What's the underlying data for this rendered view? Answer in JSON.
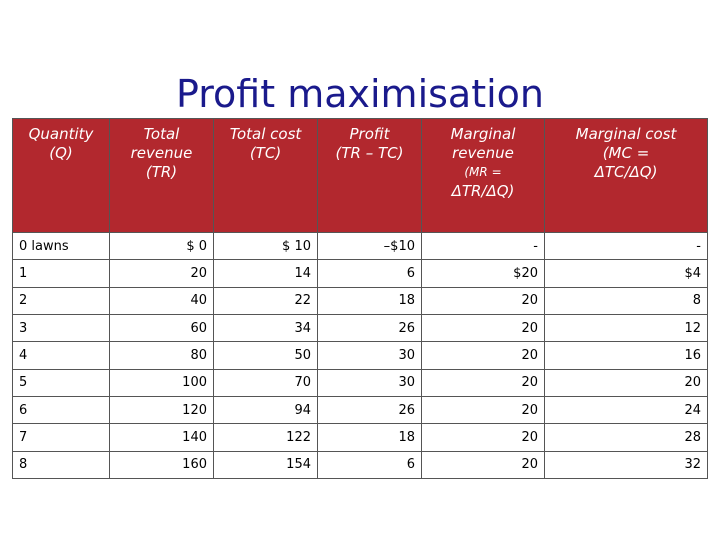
{
  "title": "Profit maximisation",
  "headers": [
    {
      "lines": [
        "Quantity",
        "(Q)"
      ]
    },
    {
      "lines": [
        "Total",
        "revenue",
        "(TR)"
      ]
    },
    {
      "lines": [
        "Total cost",
        "(TC)"
      ]
    },
    {
      "lines": [
        "Profit",
        "(TR – TC)"
      ]
    },
    {
      "lines": [
        "Marginal",
        "revenue",
        "(MR =",
        "ΔTR/ΔQ)"
      ]
    },
    {
      "lines": [
        "Marginal cost",
        "(MC =",
        "ΔTC/ΔQ)"
      ]
    }
  ],
  "rows": [
    [
      "0 lawns",
      "$ 0",
      "$ 10",
      "–$10",
      "-",
      "-"
    ],
    [
      "1",
      "20",
      "14",
      "6",
      "$20",
      "$4"
    ],
    [
      "2",
      "40",
      "22",
      "18",
      "20",
      "8"
    ],
    [
      "3",
      "60",
      "34",
      "26",
      "20",
      "12"
    ],
    [
      "4",
      "80",
      "50",
      "30",
      "20",
      "16"
    ],
    [
      "5",
      "100",
      "70",
      "30",
      "20",
      "20"
    ],
    [
      "6",
      "120",
      "94",
      "26",
      "20",
      "24"
    ],
    [
      "7",
      "140",
      "122",
      "18",
      "20",
      "28"
    ],
    [
      "8",
      "160",
      "154",
      "6",
      "20",
      "32"
    ]
  ],
  "colors": {
    "header_bg": "#b2282e",
    "title": "#1a1a8c",
    "marginal_text": "#c0282e"
  }
}
